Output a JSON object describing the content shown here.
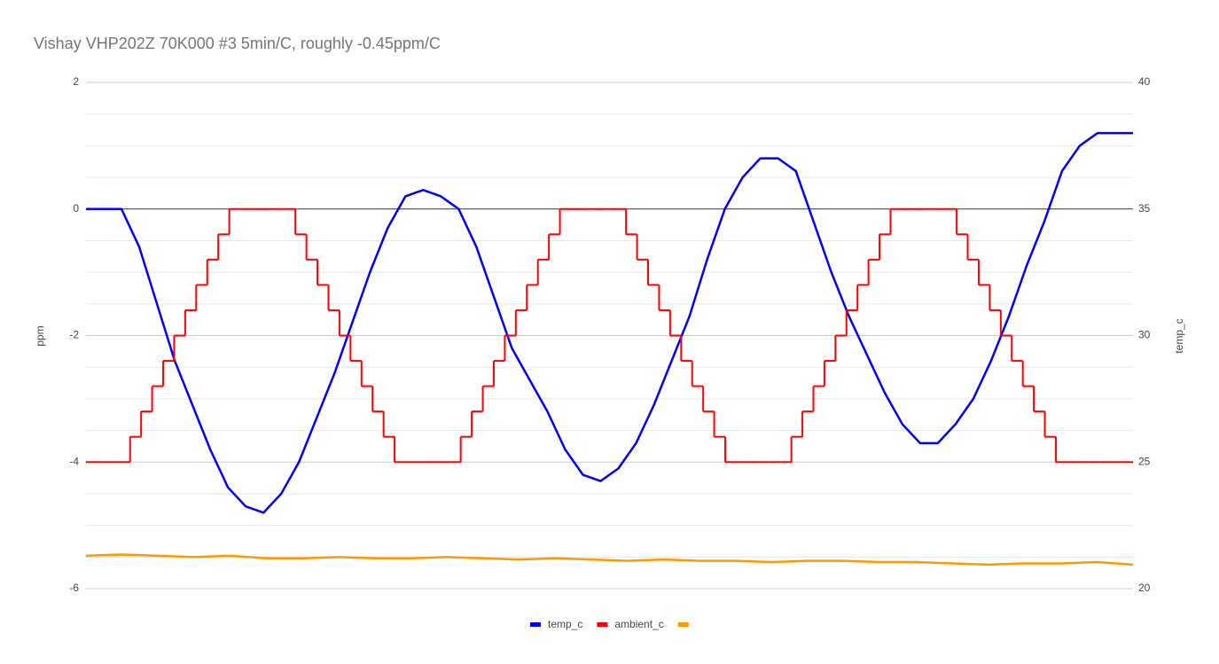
{
  "chart_data": {
    "type": "line",
    "title": "Vishay VHP202Z 70K000 #3 5min/C, roughly -0.45ppm/C",
    "ylabel": "ppm",
    "y2label": "temp_c",
    "ylim": [
      -6,
      2
    ],
    "yticks": [
      2,
      0,
      -2,
      -4,
      -6
    ],
    "y_minor_ticks": [
      1.5,
      1,
      0.5,
      -0.5,
      -1,
      -1.5,
      -2.5,
      -3,
      -3.5,
      -4.5,
      -5,
      -5.5
    ],
    "y2lim": [
      20,
      40
    ],
    "y2ticks": [
      40,
      35,
      30,
      25,
      20
    ],
    "grid": true,
    "legend": "bottom",
    "series": [
      {
        "name": "temp_c",
        "color": "#0000ff",
        "axis": "y",
        "values": [
          0.0,
          0.0,
          0.0,
          -0.6,
          -1.5,
          -2.4,
          -3.1,
          -3.8,
          -4.4,
          -4.7,
          -4.8,
          -4.5,
          -4.0,
          -3.3,
          -2.6,
          -1.8,
          -1.0,
          -0.3,
          0.2,
          0.3,
          0.2,
          0.0,
          -0.6,
          -1.4,
          -2.2,
          -2.7,
          -3.2,
          -3.8,
          -4.2,
          -4.3,
          -4.1,
          -3.7,
          -3.1,
          -2.4,
          -1.7,
          -0.8,
          0.0,
          0.5,
          0.8,
          0.8,
          0.6,
          -0.2,
          -1.0,
          -1.7,
          -2.3,
          -2.9,
          -3.4,
          -3.7,
          -3.7,
          -3.4,
          -3.0,
          -2.4,
          -1.7,
          -0.9,
          -0.2,
          0.6,
          1.0,
          1.2,
          1.2,
          1.2
        ]
      },
      {
        "name": "ambient_c",
        "color": "#ff0000",
        "axis": "y2",
        "step": true,
        "values": [
          25,
          25,
          25,
          25,
          26,
          27,
          28,
          29,
          30,
          31,
          32,
          33,
          34,
          35,
          35,
          35,
          35,
          35,
          35,
          34,
          33,
          32,
          31,
          30,
          29,
          28,
          27,
          26,
          25,
          25,
          25,
          25,
          25,
          25,
          26,
          27,
          28,
          29,
          30,
          31,
          32,
          33,
          34,
          35,
          35,
          35,
          35,
          35,
          35,
          34,
          33,
          32,
          31,
          30,
          29,
          28,
          27,
          26,
          25,
          25,
          25,
          25,
          25,
          25,
          26,
          27,
          28,
          29,
          30,
          31,
          32,
          33,
          34,
          35,
          35,
          35,
          35,
          35,
          35,
          34,
          33,
          32,
          31,
          30,
          29,
          28,
          27,
          26,
          25,
          25,
          25,
          25,
          25,
          25,
          25
        ]
      },
      {
        "color": "#ff9900",
        "axis": "y2",
        "values": [
          21.3,
          21.35,
          21.3,
          21.25,
          21.3,
          21.2,
          21.2,
          21.25,
          21.2,
          21.2,
          21.25,
          21.2,
          21.15,
          21.2,
          21.15,
          21.1,
          21.15,
          21.1,
          21.1,
          21.05,
          21.1,
          21.1,
          21.05,
          21.05,
          21.0,
          20.95,
          21.0,
          21.0,
          21.05,
          20.95
        ]
      }
    ]
  }
}
